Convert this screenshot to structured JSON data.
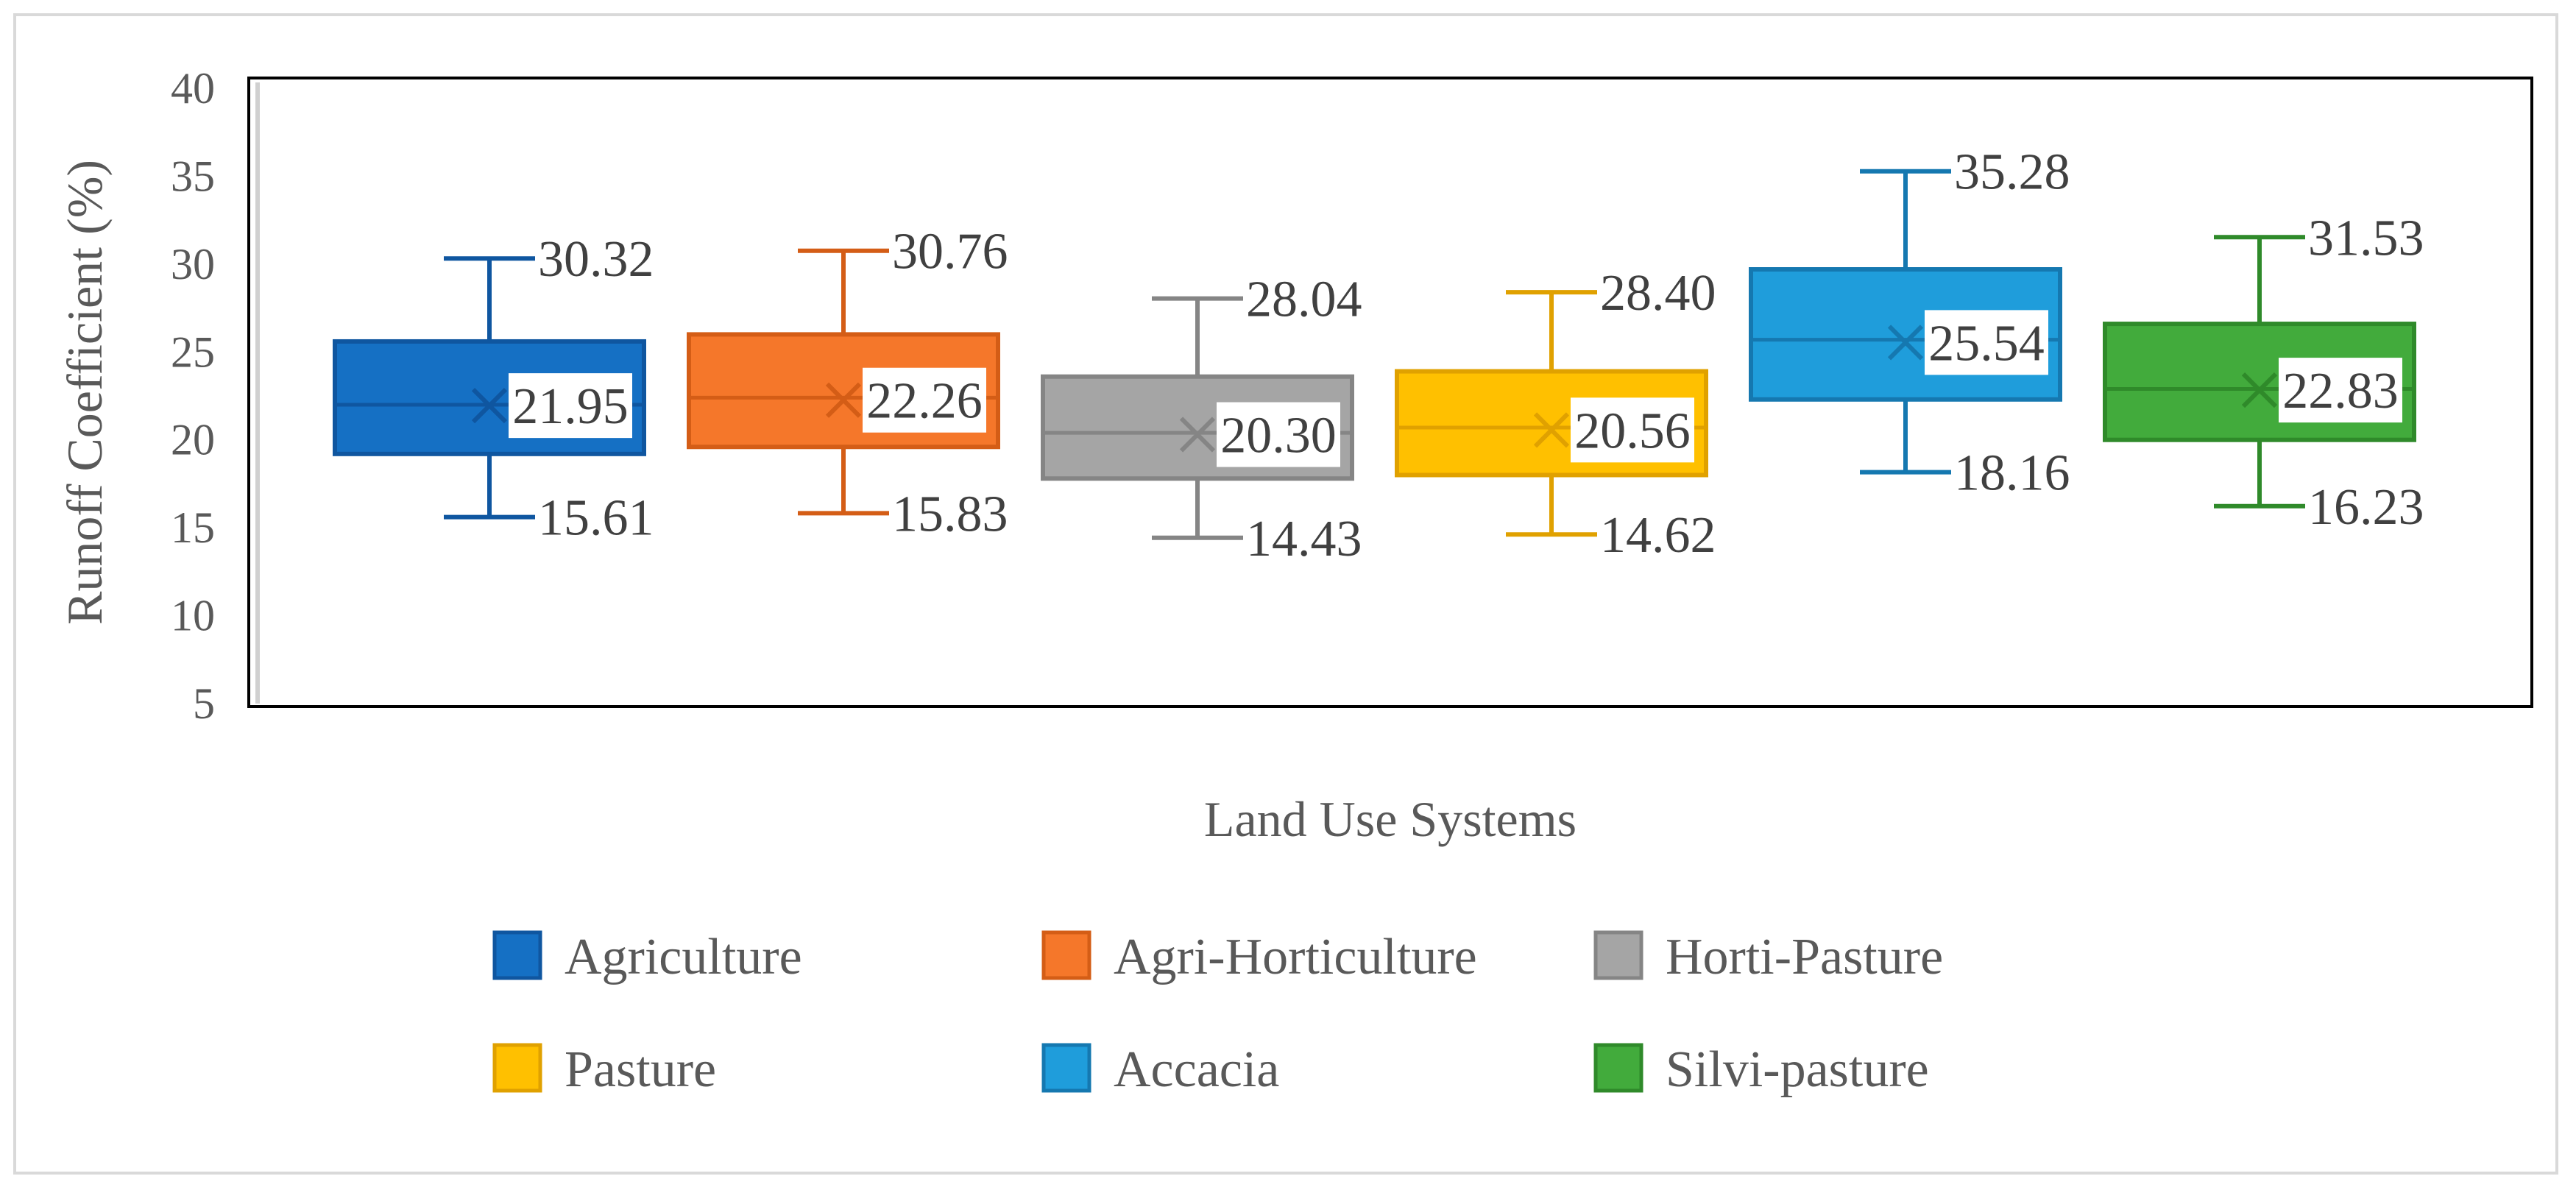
{
  "chart_data": {
    "type": "box",
    "title": "",
    "xlabel": "Land Use Systems",
    "ylabel": "Runoff Coefficient (%)",
    "ylim": [
      5,
      40
    ],
    "yticks": [
      "5",
      "10",
      "15",
      "20",
      "25",
      "30",
      "35",
      "40"
    ],
    "ytick_values": [
      5,
      10,
      15,
      20,
      25,
      30,
      35,
      40
    ],
    "grid": false,
    "legend_position": "bottom",
    "series": [
      {
        "name": "Agriculture",
        "color": "#1570c4",
        "stroke": "#0f56a0",
        "min": 15.61,
        "q1": 19.2,
        "median": 22.0,
        "q3": 25.6,
        "max": 30.32,
        "mean": 21.95,
        "min_label": "15.61",
        "max_label": "30.32",
        "mean_label": "21.95"
      },
      {
        "name": "Agri-Horticulture",
        "color": "#f5772a",
        "stroke": "#d45d16",
        "min": 15.83,
        "q1": 19.6,
        "median": 22.4,
        "q3": 26.0,
        "max": 30.76,
        "mean": 22.26,
        "min_label": "15.83",
        "max_label": "30.76",
        "mean_label": "22.26"
      },
      {
        "name": "Horti-Pasture",
        "color": "#a5a5a5",
        "stroke": "#858585",
        "min": 14.43,
        "q1": 17.8,
        "median": 20.4,
        "q3": 23.6,
        "max": 28.04,
        "mean": 20.3,
        "min_label": "14.43",
        "max_label": "28.04",
        "mean_label": "20.30"
      },
      {
        "name": "Pasture",
        "color": "#ffc000",
        "stroke": "#e0a100",
        "min": 14.62,
        "q1": 18.0,
        "median": 20.7,
        "q3": 23.9,
        "max": 28.4,
        "mean": 20.56,
        "min_label": "14.62",
        "max_label": "28.40",
        "mean_label": "20.56"
      },
      {
        "name": "Accacia",
        "color": "#1f9ddb",
        "stroke": "#1578b0",
        "min": 18.16,
        "q1": 22.3,
        "median": 25.7,
        "q3": 29.7,
        "max": 35.28,
        "mean": 25.54,
        "min_label": "18.16",
        "max_label": "35.28",
        "mean_label": "25.54"
      },
      {
        "name": "Silvi-pasture",
        "color": "#42ab3c",
        "stroke": "#2f8a2a",
        "min": 16.23,
        "q1": 20.0,
        "median": 22.9,
        "q3": 26.6,
        "max": 31.53,
        "mean": 22.83,
        "min_label": "16.23",
        "max_label": "31.53",
        "mean_label": "22.83"
      }
    ]
  }
}
